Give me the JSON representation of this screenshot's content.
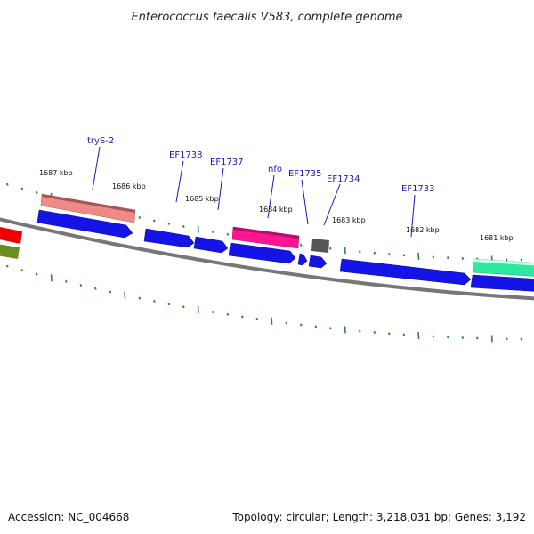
{
  "title": "Enterococcus faecalis V583, complete genome",
  "footer": {
    "accession": "Accession: NC_004668",
    "summary": "Topology: circular; Length: 3,218,031 bp; Genes: 3,192"
  },
  "colors": {
    "backbone": "#777777",
    "tick": "#2e8b2e",
    "cds_forward": "#1414e6",
    "trna": "#f08a84",
    "rrna": "#ff1493",
    "gray_feature": "#555555",
    "teal_feature": "#2ee8a2",
    "red_feature": "#ee0000",
    "olive_feature": "#6b8e23",
    "label": "#1a1ab0"
  },
  "kbp_labels": [
    "1687 kbp",
    "1686 kbp",
    "1685 kbp",
    "1684 kbp",
    "1683 kbp",
    "1682 kbp",
    "1681 kbp"
  ],
  "gene_labels": [
    "tryS-2",
    "EF1738",
    "EF1737",
    "nfo",
    "EF1735",
    "EF1734",
    "EF1733"
  ]
}
